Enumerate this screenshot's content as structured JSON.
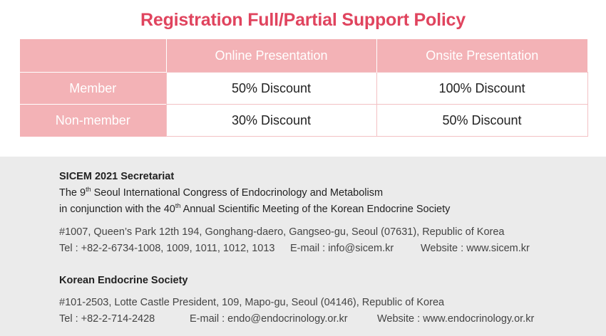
{
  "title": "Registration Full/Partial Support Policy",
  "table": {
    "headers": [
      "",
      "Online Presentation",
      "Onsite Presentation"
    ],
    "rows": [
      {
        "label": "Member",
        "online": "50% Discount",
        "onsite": "100% Discount"
      },
      {
        "label": "Non-member",
        "online": "30% Discount",
        "onsite": "50% Discount"
      }
    ]
  },
  "secretariat": {
    "heading": "SICEM 2021 Secretariat",
    "line1_pre": "The 9",
    "line1_sup": "th",
    "line1_post": " Seoul International Congress of Endocrinology and Metabolism",
    "line2_pre": "in conjunction with the 40",
    "line2_sup": "th",
    "line2_post": " Annual Scientific Meeting of the Korean Endocrine Society",
    "address": "#1007, Queen’s Park 12th 194, Gonghang-daero, Gangseo-gu, Seoul (07631), Republic of Korea",
    "tel": "Tel : +82-2-6734-1008, 1009, 1011, 1012, 1013",
    "email": "E-mail : info@sicem.kr",
    "website": "Website : www.sicem.kr"
  },
  "kes": {
    "heading": "Korean Endocrine Society",
    "address": "#101-2503, Lotte Castle President, 109, Mapo-gu, Seoul (04146), Republic of Korea",
    "tel": "Tel : +82-2-714-2428",
    "email": "E-mail : endo@endocrinology.or.kr",
    "website": "Website : www.endocrinology.or.kr"
  }
}
